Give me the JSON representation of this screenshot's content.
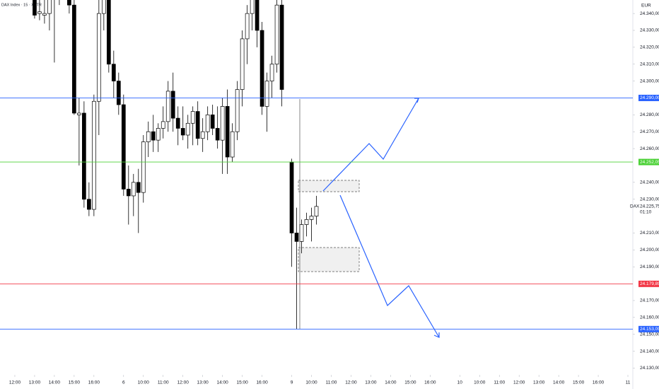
{
  "chart_data": {
    "type": "candlestick",
    "title": "DAX Index · 15 · XETR",
    "currency": "EUR",
    "symbol": "DAX",
    "countdown": "01:10",
    "last_price": {
      "value": 24225.75,
      "label": "24.225,75"
    },
    "up_color": "#ffffff",
    "down_color": "#000000",
    "border_color": "#000000",
    "x": [
      4,
      5,
      6,
      7,
      8,
      9,
      10,
      11,
      12,
      13,
      14,
      15,
      16,
      17,
      18,
      19,
      20,
      21,
      22,
      23,
      24,
      25,
      26,
      27,
      28,
      29,
      30,
      31,
      32,
      33,
      34,
      35,
      36,
      37,
      38,
      39,
      40,
      41,
      42,
      43,
      44,
      45,
      46,
      47,
      48,
      49,
      50,
      51,
      52,
      53,
      54,
      56,
      57,
      58,
      59,
      60,
      61
    ],
    "open": [
      24352,
      24340,
      24339,
      24340,
      24356,
      24350,
      24360,
      24355,
      24345,
      24280,
      24281,
      24230,
      24224,
      24288,
      24340,
      24350,
      24310,
      24300,
      24286,
      24236,
      24232,
      24240,
      24234,
      24264,
      24270,
      24265,
      24272,
      24276,
      24294,
      24278,
      24272,
      24268,
      24275,
      24282,
      24266,
      24270,
      24280,
      24272,
      24265,
      24285,
      24255,
      24270,
      24295,
      24325,
      24340,
      24355,
      24330,
      24285,
      24300,
      24310,
      24345,
      24252,
      24210,
      24205,
      24215,
      24218,
      24220
    ],
    "high": [
      24360,
      24352,
      24348,
      24362,
      24360,
      24365,
      24370,
      24365,
      24350,
      24290,
      24288,
      24240,
      24292,
      24350,
      24360,
      24360,
      24318,
      24305,
      24292,
      24250,
      24245,
      24248,
      24268,
      24276,
      24280,
      24275,
      24285,
      24300,
      24305,
      24285,
      24285,
      24280,
      24285,
      24288,
      24278,
      24285,
      24286,
      24285,
      24290,
      24295,
      24275,
      24300,
      24330,
      24345,
      24365,
      24370,
      24335,
      24305,
      24315,
      24348,
      24348,
      24254,
      24225,
      24218,
      24222,
      24225,
      24232
    ],
    "low": [
      24337,
      24336,
      24334,
      24330,
      24311,
      24345,
      24352,
      24340,
      24280,
      24250,
      24225,
      24220,
      24220,
      24268,
      24330,
      24305,
      24290,
      24280,
      24232,
      24215,
      24220,
      24210,
      24228,
      24255,
      24258,
      24258,
      24266,
      24270,
      24270,
      24262,
      24265,
      24260,
      24262,
      24262,
      24258,
      24265,
      24268,
      24260,
      24245,
      24245,
      24252,
      24265,
      24285,
      24310,
      24330,
      24320,
      24280,
      24270,
      24290,
      24305,
      24285,
      24190,
      24153,
      24198,
      24208,
      24205,
      24215
    ],
    "close": [
      24339,
      24341,
      24340,
      24356,
      24350,
      24360,
      24355,
      24345,
      24281,
      24281,
      24230,
      24224,
      24288,
      24340,
      24350,
      24310,
      24300,
      24286,
      24236,
      24232,
      24240,
      24234,
      24264,
      24270,
      24265,
      24272,
      24276,
      24294,
      24278,
      24272,
      24268,
      24275,
      24282,
      24266,
      24270,
      24280,
      24272,
      24265,
      24285,
      24255,
      24270,
      24295,
      24325,
      24340,
      24355,
      24330,
      24285,
      24300,
      24310,
      24345,
      24295,
      24210,
      24205,
      24215,
      24218,
      24220,
      24225.75
    ],
    "xlim": [
      -3,
      125
    ],
    "xticks": [
      {
        "value": 0,
        "label": "12:00"
      },
      {
        "value": 4,
        "label": "13:00"
      },
      {
        "value": 8,
        "label": "14:00"
      },
      {
        "value": 12,
        "label": "15:00"
      },
      {
        "value": 16,
        "label": "16:00"
      },
      {
        "value": 22,
        "label": "6"
      },
      {
        "value": 26,
        "label": "10:00"
      },
      {
        "value": 30,
        "label": "11:00"
      },
      {
        "value": 34,
        "label": "12:00"
      },
      {
        "value": 38,
        "label": "13:00"
      },
      {
        "value": 42,
        "label": "14:00"
      },
      {
        "value": 46,
        "label": "15:00"
      },
      {
        "value": 50,
        "label": "16:00"
      },
      {
        "value": 56,
        "label": "9"
      },
      {
        "value": 60,
        "label": "10:00"
      },
      {
        "value": 64,
        "label": "11:00"
      },
      {
        "value": 68,
        "label": "12:00"
      },
      {
        "value": 72,
        "label": "13:00"
      },
      {
        "value": 76,
        "label": "14:00"
      },
      {
        "value": 80,
        "label": "15:00"
      },
      {
        "value": 84,
        "label": "16:00"
      },
      {
        "value": 90,
        "label": "10"
      },
      {
        "value": 94,
        "label": "10:00"
      },
      {
        "value": 98,
        "label": "11:00"
      },
      {
        "value": 102,
        "label": "12:00"
      },
      {
        "value": 106,
        "label": "13:00"
      },
      {
        "value": 110,
        "label": "14:00"
      },
      {
        "value": 114,
        "label": "15:00"
      },
      {
        "value": 118,
        "label": "16:00"
      },
      {
        "value": 124,
        "label": "11"
      }
    ],
    "ylim": [
      24126,
      24348
    ],
    "yticks": [
      {
        "value": 24340,
        "label": "24.340,00"
      },
      {
        "value": 24330,
        "label": "24.330,00"
      },
      {
        "value": 24320,
        "label": "24.320,00"
      },
      {
        "value": 24310,
        "label": "24.310,00"
      },
      {
        "value": 24300,
        "label": "24.300,00"
      },
      {
        "value": 24280,
        "label": "24.280,00"
      },
      {
        "value": 24270,
        "label": "24.270,00"
      },
      {
        "value": 24260,
        "label": "24.260,00"
      },
      {
        "value": 24240,
        "label": "24.240,00"
      },
      {
        "value": 24230,
        "label": "24.230,00"
      },
      {
        "value": 24210,
        "label": "24.210,00"
      },
      {
        "value": 24200,
        "label": "24.200,00"
      },
      {
        "value": 24190,
        "label": "24.190,00"
      },
      {
        "value": 24170,
        "label": "24.170,00"
      },
      {
        "value": 24160,
        "label": "24.160,00"
      },
      {
        "value": 24150,
        "label": "24.150,00"
      },
      {
        "value": 24140,
        "label": "24.140,00"
      },
      {
        "value": 24130,
        "label": "24.130,00"
      }
    ],
    "levels": [
      {
        "value": 24290,
        "label": "24.290,00",
        "color": "#2962ff"
      },
      {
        "value": 24252.05,
        "label": "24.252,05",
        "color": "#4cd137"
      },
      {
        "value": 24179.89,
        "label": "24.179,89",
        "color": "#f23645"
      },
      {
        "value": 24153.09,
        "label": "24.153,09",
        "color": "#2962ff"
      }
    ]
  }
}
